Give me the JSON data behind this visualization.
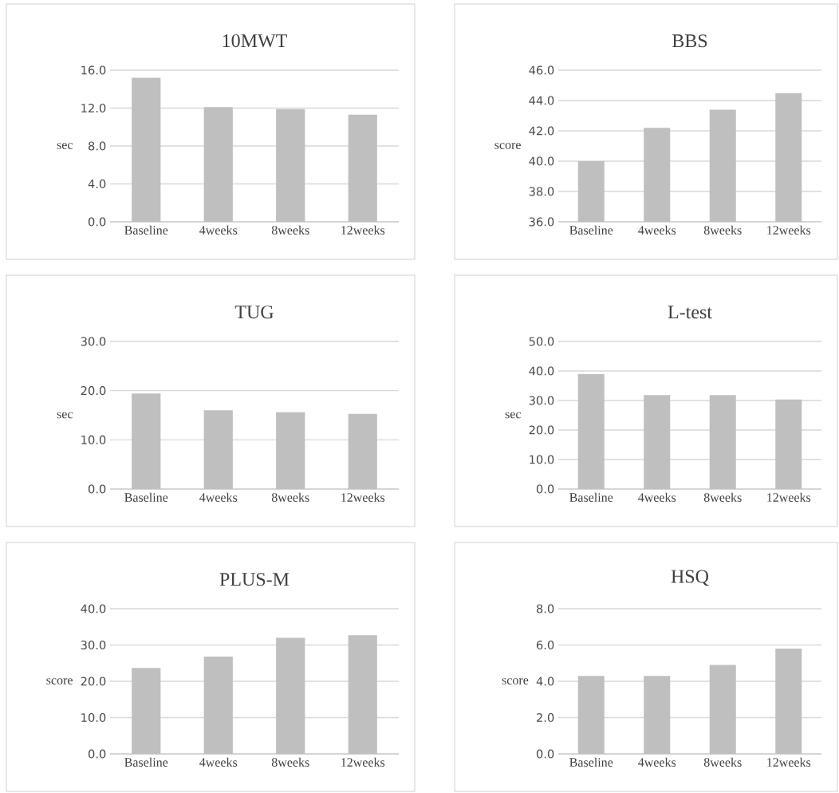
{
  "chart_data": [
    {
      "type": "bar",
      "title": "10MWT",
      "ylabel": "sec",
      "categories": [
        "Baseline",
        "4weeks",
        "8weeks",
        "12weeks"
      ],
      "values": [
        15.2,
        12.1,
        11.9,
        11.3
      ],
      "color": "#bfbfbf",
      "ylim": [
        0,
        16
      ],
      "yticks": [
        {
          "value": 0,
          "label": "0.0"
        },
        {
          "value": 4,
          "label": "4.0"
        },
        {
          "value": 8,
          "label": "8.0"
        },
        {
          "value": 12,
          "label": "12.0"
        },
        {
          "value": 16,
          "label": "16.0"
        }
      ],
      "grid": "y"
    },
    {
      "type": "bar",
      "title": "BBS",
      "ylabel": "score",
      "categories": [
        "Baseline",
        "4weeks",
        "8weeks",
        "12weeks"
      ],
      "values": [
        40.0,
        42.2,
        43.4,
        44.5
      ],
      "color": "#bfbfbf",
      "ylim": [
        36,
        46
      ],
      "yticks": [
        {
          "value": 36,
          "label": "36.0"
        },
        {
          "value": 38,
          "label": "38.0"
        },
        {
          "value": 40,
          "label": "40.0"
        },
        {
          "value": 42,
          "label": "42.0"
        },
        {
          "value": 44,
          "label": "44.0"
        },
        {
          "value": 46,
          "label": "46.0"
        }
      ],
      "grid": "y"
    },
    {
      "type": "bar",
      "title": "TUG",
      "ylabel": "sec",
      "categories": [
        "Baseline",
        "4weeks",
        "8weeks",
        "12weeks"
      ],
      "values": [
        19.4,
        16.0,
        15.6,
        15.3
      ],
      "color": "#bfbfbf",
      "ylim": [
        0,
        30
      ],
      "yticks": [
        {
          "value": 0,
          "label": "0.0"
        },
        {
          "value": 10,
          "label": "10.0"
        },
        {
          "value": 20,
          "label": "20.0"
        },
        {
          "value": 30,
          "label": "30.0"
        }
      ],
      "grid": "y"
    },
    {
      "type": "bar",
      "title": "L-test",
      "ylabel": "sec",
      "categories": [
        "Baseline",
        "4weeks",
        "8weeks",
        "12weeks"
      ],
      "values": [
        39.0,
        31.8,
        31.8,
        30.3
      ],
      "color": "#bfbfbf",
      "ylim": [
        0,
        50
      ],
      "yticks": [
        {
          "value": 0,
          "label": "0.0"
        },
        {
          "value": 10,
          "label": "10.0"
        },
        {
          "value": 20,
          "label": "20.0"
        },
        {
          "value": 30,
          "label": "30.0"
        },
        {
          "value": 40,
          "label": "40.0"
        },
        {
          "value": 50,
          "label": "50.0"
        }
      ],
      "grid": "y"
    },
    {
      "type": "bar",
      "title": "PLUS-M",
      "ylabel": "score",
      "categories": [
        "Baseline",
        "4weeks",
        "8weeks",
        "12weeks"
      ],
      "values": [
        23.7,
        26.8,
        32.0,
        32.7
      ],
      "color": "#bfbfbf",
      "ylim": [
        0,
        40
      ],
      "yticks": [
        {
          "value": 0,
          "label": "0.0"
        },
        {
          "value": 10,
          "label": "10.0"
        },
        {
          "value": 20,
          "label": "20.0"
        },
        {
          "value": 30,
          "label": "30.0"
        },
        {
          "value": 40,
          "label": "40.0"
        }
      ],
      "grid": "y"
    },
    {
      "type": "bar",
      "title": "HSQ",
      "ylabel": "score",
      "categories": [
        "Baseline",
        "4weeks",
        "8weeks",
        "12weeks"
      ],
      "values": [
        4.3,
        4.3,
        4.9,
        5.8
      ],
      "color": "#bfbfbf",
      "ylim": [
        0,
        8
      ],
      "yticks": [
        {
          "value": 0,
          "label": "0.0"
        },
        {
          "value": 2,
          "label": "2.0"
        },
        {
          "value": 4,
          "label": "4.0"
        },
        {
          "value": 6,
          "label": "6.0"
        },
        {
          "value": 8,
          "label": "8.0"
        }
      ],
      "grid": "y"
    }
  ]
}
